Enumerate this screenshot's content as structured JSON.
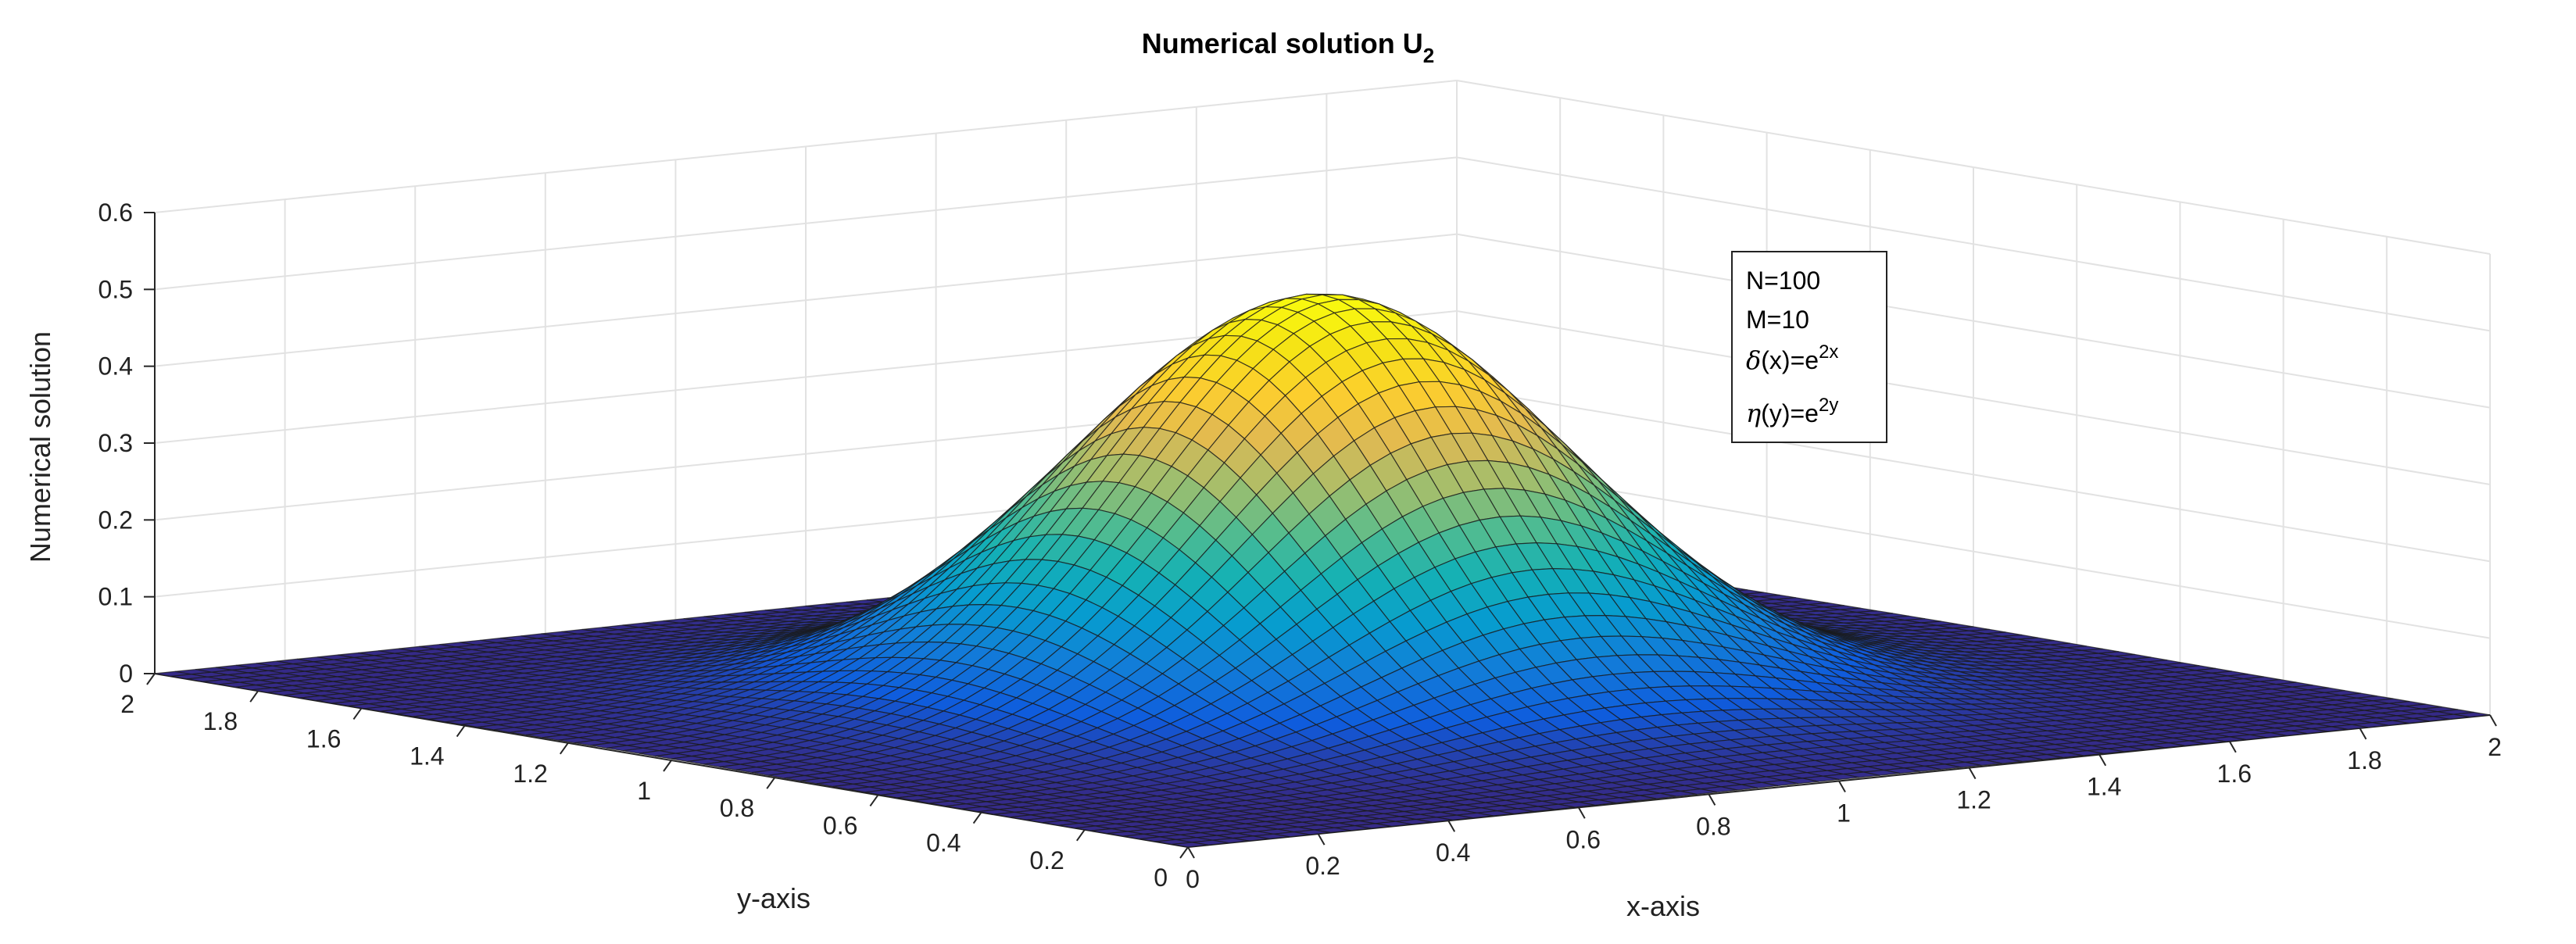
{
  "chart_data": {
    "type": "surface",
    "title": "Numerical solution U",
    "title_subscript": "2",
    "xlabel": "x-axis",
    "ylabel": "y-axis",
    "zlabel": "Numerical solution",
    "xlim": [
      0,
      2
    ],
    "ylim": [
      0,
      2
    ],
    "zlim": [
      0,
      0.6
    ],
    "x_ticks": [
      "0",
      "0.2",
      "0.4",
      "0.6",
      "0.8",
      "1",
      "1.2",
      "1.4",
      "1.6",
      "1.8",
      "2"
    ],
    "y_ticks": [
      "0",
      "0.2",
      "0.4",
      "0.6",
      "0.8",
      "1",
      "1.2",
      "1.4",
      "1.6",
      "1.8",
      "2"
    ],
    "z_ticks": [
      "0",
      "0.1",
      "0.2",
      "0.3",
      "0.4",
      "0.5",
      "0.6"
    ],
    "grid": true,
    "colormap": "parula",
    "surface": {
      "peak_value": 0.52,
      "peak_location": [
        1,
        1
      ],
      "base_value": 0,
      "mesh_resolution": 100
    },
    "annotation": {
      "lines": [
        {
          "text": "N=100"
        },
        {
          "text": "M=10"
        },
        {
          "prefix": "δ",
          "text": "(x)=e",
          "sup": "2x"
        },
        {
          "prefix": "η",
          "text": "(y)=e",
          "sup": "2y"
        }
      ],
      "placement": "upper-right"
    }
  }
}
